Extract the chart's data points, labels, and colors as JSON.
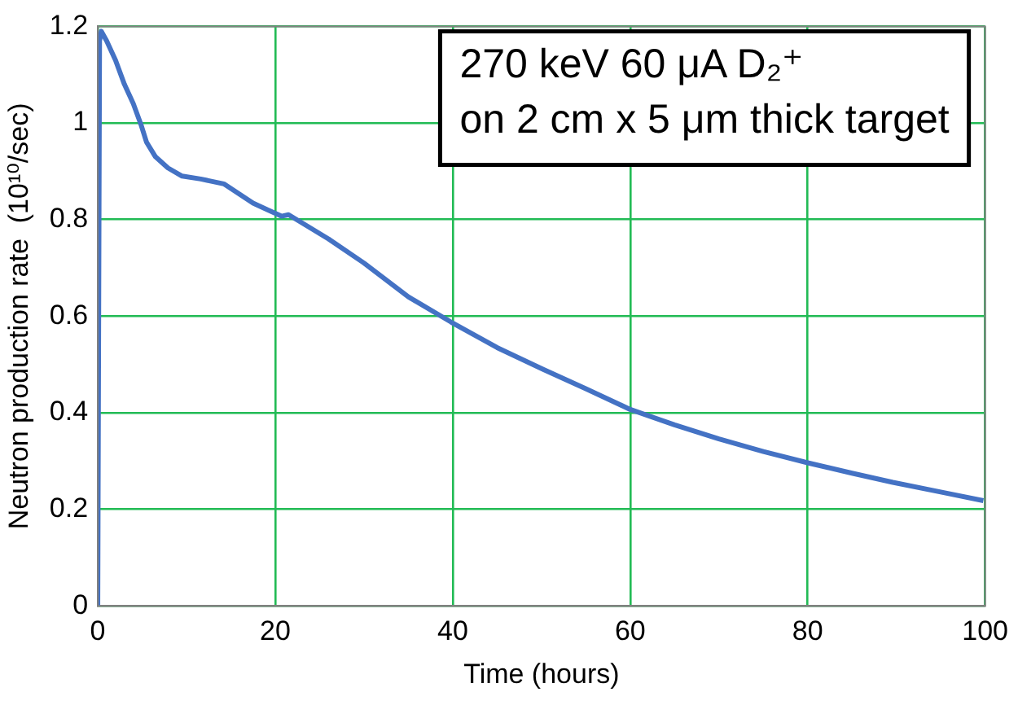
{
  "chart_data": {
    "type": "line",
    "xlabel": "Time (hours)",
    "ylabel": "Neutron production rate  (10¹⁰/sec)",
    "annotations": [
      "270 keV 60 μA D₂⁺\non 2 cm x 5 μm thick target"
    ],
    "xlim": [
      0,
      100
    ],
    "xticks": [
      0,
      20,
      40,
      60,
      80,
      100
    ],
    "ylim": [
      0,
      1.2
    ],
    "yticks": [
      0,
      0.2,
      0.4,
      0.6,
      0.8,
      1,
      1.2
    ],
    "grid": true,
    "legend": false,
    "marker": "none",
    "line_style": "solid",
    "series": [
      {
        "color": "#4472c4",
        "x": [
          0,
          0.2,
          0.4,
          1,
          2,
          3,
          4,
          4.9,
          5.5,
          6.5,
          7.9,
          9.5,
          11.6,
          14.2,
          17.5,
          20.7,
          21.5,
          26,
          30,
          35,
          39.8,
          45,
          50.2,
          55,
          60,
          65,
          70,
          75,
          80.1,
          85,
          89.6,
          95,
          99.8
        ],
        "values": [
          0,
          1.17,
          1.19,
          1.17,
          1.13,
          1.08,
          1.04,
          0.995,
          0.96,
          0.93,
          0.907,
          0.89,
          0.884,
          0.874,
          0.834,
          0.807,
          0.81,
          0.76,
          0.71,
          0.64,
          0.588,
          0.535,
          0.49,
          0.45,
          0.407,
          0.375,
          0.346,
          0.32,
          0.296,
          0.275,
          0.256,
          0.236,
          0.218
        ]
      }
    ]
  }
}
